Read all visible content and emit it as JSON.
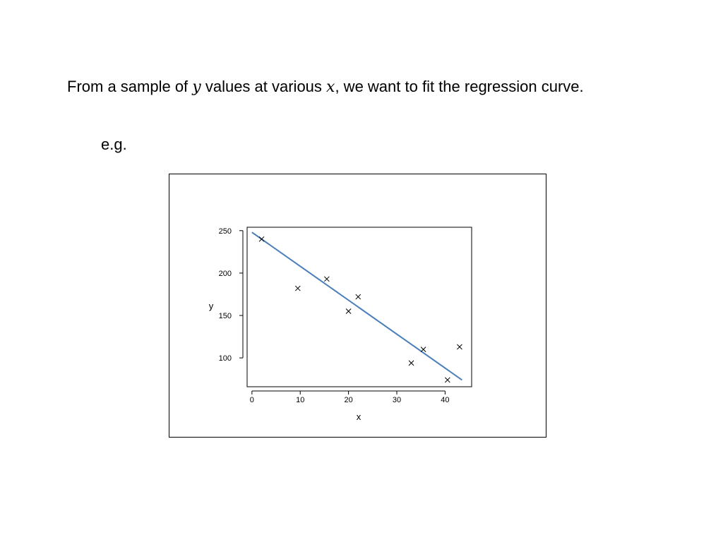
{
  "slide": {
    "text_before_y": "From a sample of ",
    "var_y": "y",
    "text_between": " values at various ",
    "var_x": "x",
    "text_after": ", we want to fit the regression curve.",
    "example_label": "e.g."
  },
  "chart_data": {
    "type": "scatter",
    "title": "",
    "xlabel": "x",
    "ylabel": "y",
    "xlim": [
      -1,
      45.5
    ],
    "ylim": [
      66,
      254
    ],
    "x_ticks": [
      0,
      10,
      20,
      30,
      40
    ],
    "y_ticks": [
      100,
      150,
      200,
      250
    ],
    "grid": false,
    "points": [
      {
        "x": 2,
        "y": 240
      },
      {
        "x": 9.5,
        "y": 182
      },
      {
        "x": 15.5,
        "y": 193
      },
      {
        "x": 20,
        "y": 155
      },
      {
        "x": 22,
        "y": 172
      },
      {
        "x": 33,
        "y": 94
      },
      {
        "x": 35.5,
        "y": 110
      },
      {
        "x": 40.5,
        "y": 74
      },
      {
        "x": 43,
        "y": 113
      }
    ],
    "fit_line": {
      "x": [
        0,
        43.5
      ],
      "y": [
        248,
        74
      ],
      "color": "#4a7ebb"
    }
  }
}
